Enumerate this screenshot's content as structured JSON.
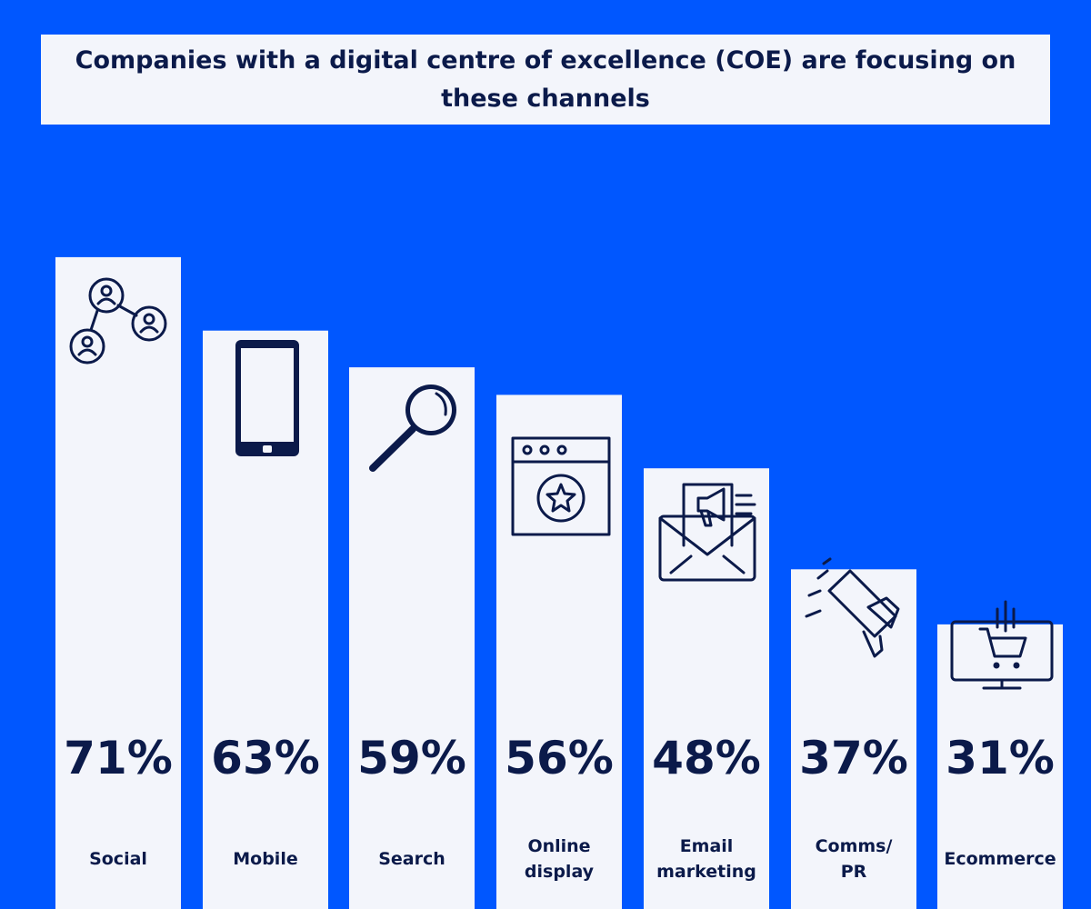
{
  "chart_data": {
    "type": "bar",
    "title": "Companies with a digital centre of excellence (COE) are focusing on these channels",
    "categories": [
      "Social",
      "Mobile",
      "Search",
      "Online display",
      "Email marketing",
      "Comms/ PR",
      "Ecommerce"
    ],
    "category_lines": [
      [
        "Social"
      ],
      [
        "Mobile"
      ],
      [
        "Search"
      ],
      [
        "Online",
        "display"
      ],
      [
        "Email",
        "marketing"
      ],
      [
        "Comms/",
        "PR"
      ],
      [
        "Ecommerce"
      ]
    ],
    "values": [
      71,
      63,
      59,
      56,
      48,
      37,
      31
    ],
    "value_labels": [
      "71%",
      "63%",
      "59%",
      "56%",
      "48%",
      "37%",
      "31%"
    ],
    "icons": [
      "social-network-icon",
      "smartphone-icon",
      "magnifier-icon",
      "browser-star-icon",
      "email-megaphone-icon",
      "megaphone-icon",
      "cart-monitor-icon"
    ],
    "xlabel": "",
    "ylabel": "",
    "grid": false,
    "legend": "none",
    "colors": {
      "background": "#0057ff",
      "bar": "#f3f5fb",
      "text": "#0b1a4a"
    }
  }
}
